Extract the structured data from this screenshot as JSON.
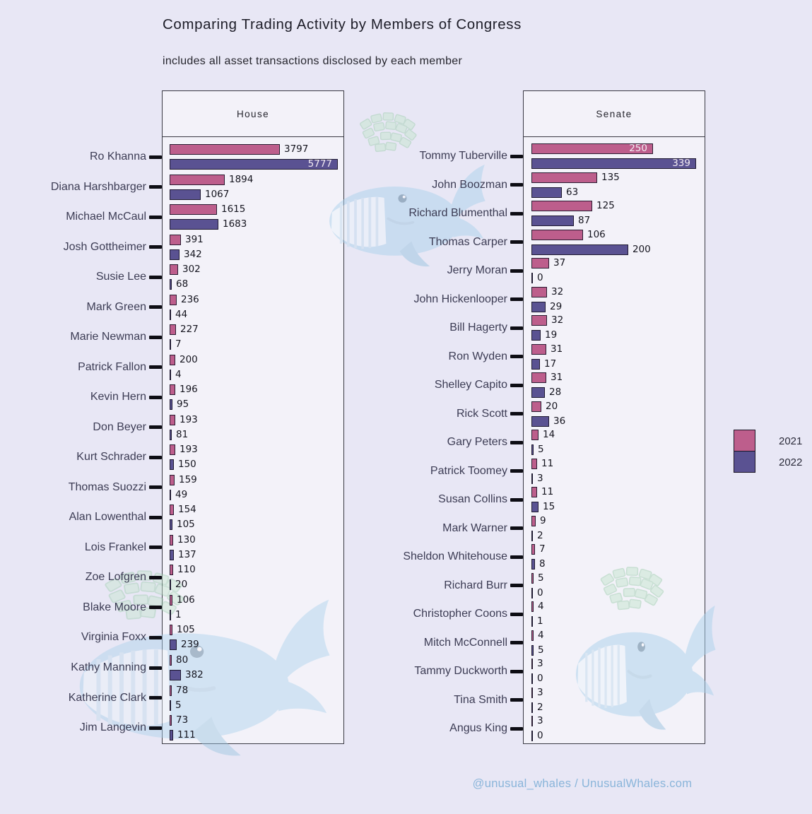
{
  "chart_data": {
    "type": "bar",
    "orientation": "horizontal",
    "title": "Comparing Trading Activity by Members of Congress",
    "subtitle": "includes all asset transactions disclosed by each member",
    "series": [
      "2021",
      "2022"
    ],
    "series_colors": {
      "2021": "#bd5e8c",
      "2022": "#5a5292"
    },
    "value_labels": "shown at end of each bar",
    "panels": [
      {
        "label": "House",
        "axis_max": 5777,
        "members": [
          {
            "name": "Ro Khanna",
            "values": [
              3797,
              5777
            ]
          },
          {
            "name": "Diana Harshbarger",
            "values": [
              1894,
              1067
            ]
          },
          {
            "name": "Michael McCaul",
            "values": [
              1615,
              1683
            ]
          },
          {
            "name": "Josh Gottheimer",
            "values": [
              391,
              342
            ]
          },
          {
            "name": "Susie Lee",
            "values": [
              302,
              68
            ]
          },
          {
            "name": "Mark Green",
            "values": [
              236,
              44
            ]
          },
          {
            "name": "Marie Newman",
            "values": [
              227,
              7
            ]
          },
          {
            "name": "Patrick Fallon",
            "values": [
              200,
              4
            ]
          },
          {
            "name": "Kevin Hern",
            "values": [
              196,
              95
            ]
          },
          {
            "name": "Don Beyer",
            "values": [
              193,
              81
            ]
          },
          {
            "name": "Kurt Schrader",
            "values": [
              193,
              150
            ]
          },
          {
            "name": "Thomas Suozzi",
            "values": [
              159,
              49
            ]
          },
          {
            "name": "Alan Lowenthal",
            "values": [
              154,
              105
            ]
          },
          {
            "name": "Lois Frankel",
            "values": [
              130,
              137
            ]
          },
          {
            "name": "Zoe Lofgren",
            "values": [
              110,
              20
            ]
          },
          {
            "name": "Blake Moore",
            "values": [
              106,
              1
            ]
          },
          {
            "name": "Virginia Foxx",
            "values": [
              105,
              239
            ]
          },
          {
            "name": "Kathy Manning",
            "values": [
              80,
              382
            ]
          },
          {
            "name": "Katherine Clark",
            "values": [
              78,
              5
            ]
          },
          {
            "name": "Jim Langevin",
            "values": [
              73,
              111
            ]
          }
        ]
      },
      {
        "label": "Senate",
        "axis_max": 339,
        "members": [
          {
            "name": "Tommy Tuberville",
            "values": [
              250,
              339
            ]
          },
          {
            "name": "John Boozman",
            "values": [
              135,
              63
            ]
          },
          {
            "name": "Richard Blumenthal",
            "values": [
              125,
              87
            ]
          },
          {
            "name": "Thomas Carper",
            "values": [
              106,
              200
            ]
          },
          {
            "name": "Jerry Moran",
            "values": [
              37,
              0
            ]
          },
          {
            "name": "John Hickenlooper",
            "values": [
              32,
              29
            ]
          },
          {
            "name": "Bill Hagerty",
            "values": [
              32,
              19
            ]
          },
          {
            "name": "Ron Wyden",
            "values": [
              31,
              17
            ]
          },
          {
            "name": "Shelley Capito",
            "values": [
              31,
              28
            ]
          },
          {
            "name": "Rick Scott",
            "values": [
              20,
              36
            ]
          },
          {
            "name": "Gary Peters",
            "values": [
              14,
              5
            ]
          },
          {
            "name": "Patrick Toomey",
            "values": [
              11,
              3
            ]
          },
          {
            "name": "Susan Collins",
            "values": [
              11,
              15
            ]
          },
          {
            "name": "Mark Warner",
            "values": [
              9,
              2
            ]
          },
          {
            "name": "Sheldon Whitehouse",
            "values": [
              7,
              8
            ]
          },
          {
            "name": "Richard Burr",
            "values": [
              5,
              0
            ]
          },
          {
            "name": "Christopher Coons",
            "values": [
              4,
              1
            ]
          },
          {
            "name": "Mitch McConnell",
            "values": [
              4,
              5
            ]
          },
          {
            "name": "Tammy Duckworth",
            "values": [
              3,
              0
            ]
          },
          {
            "name": "Tina Smith",
            "values": [
              3,
              2
            ]
          },
          {
            "name": "Angus King",
            "values": [
              3,
              0
            ]
          }
        ]
      }
    ]
  },
  "legend": {
    "items": [
      {
        "label": "2021",
        "color": "#bd5e8c"
      },
      {
        "label": "2022",
        "color": "#5a5292"
      }
    ]
  },
  "footer": {
    "credit": "@unusual_whales / UnusualWhales.com"
  },
  "colors": {
    "background": "#e8e7f5",
    "panel_background": "#f3f2f9",
    "bar_2021": "#bd5e8c",
    "bar_2022": "#5a5292",
    "footer_text": "#8ab5da",
    "watermark_whale": "#abd2ec",
    "watermark_money": "#c5e6cf"
  }
}
